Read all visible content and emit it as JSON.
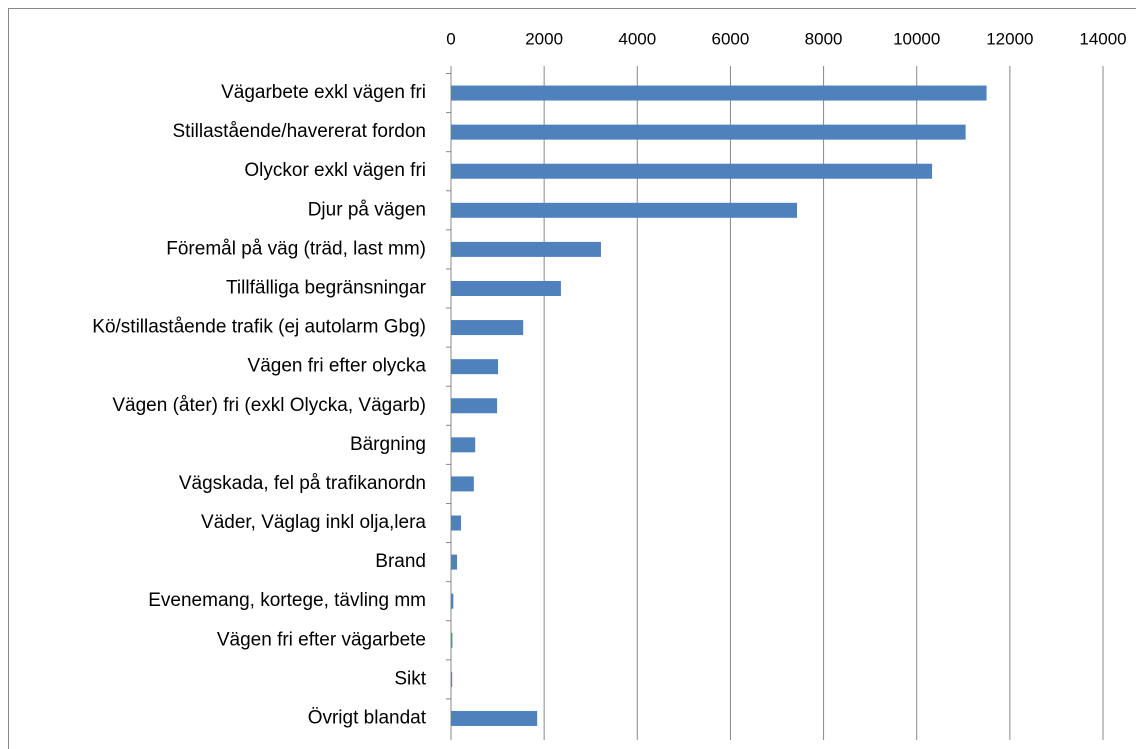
{
  "chart_data": {
    "type": "bar",
    "orientation": "horizontal",
    "categories": [
      "Vägarbete exkl vägen fri",
      "Stillastående/havererat fordon",
      "Olyckor exkl vägen fri",
      "Djur på vägen",
      "Föremål på väg (träd, last mm)",
      "Tillfälliga begränsningar",
      "Kö/stillastående trafik (ej autolarm Gbg)",
      "Vägen fri efter olycka",
      "Vägen (åter) fri (exkl Olycka, Vägarb)",
      "Bärgning",
      "Vägskada, fel på trafikanordn",
      "Väder, Väglag inkl olja,lera",
      "Brand",
      "Evenemang, kortege, tävling mm",
      "Vägen fri efter vägarbete",
      "Sikt",
      "Övrigt blandat"
    ],
    "values": [
      11500,
      11050,
      10330,
      7430,
      3220,
      2360,
      1550,
      1010,
      990,
      520,
      490,
      215,
      130,
      50,
      30,
      25,
      1850
    ],
    "color": "#4f81bd",
    "xlim": [
      0,
      14000
    ],
    "xticks": [
      0,
      2000,
      4000,
      6000,
      8000,
      10000,
      12000,
      14000
    ],
    "grid": true
  }
}
